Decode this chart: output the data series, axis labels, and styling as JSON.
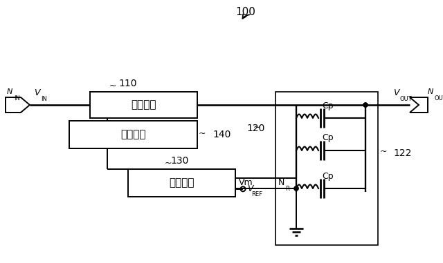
{
  "bg_color": "#ffffff",
  "line_color": "#000000",
  "text_color": "#000000",
  "fig_width": 6.4,
  "fig_height": 3.81,
  "dpi": 100,
  "label_100": "100",
  "label_110": "110",
  "label_120": "120",
  "label_122": "122",
  "label_130": "130",
  "label_140": "140",
  "box_110_text": "変換回路",
  "box_140_text": "制御回路",
  "box_130_text": "比較回路",
  "label_Vm": "Vm",
  "label_Cp": "Cp"
}
